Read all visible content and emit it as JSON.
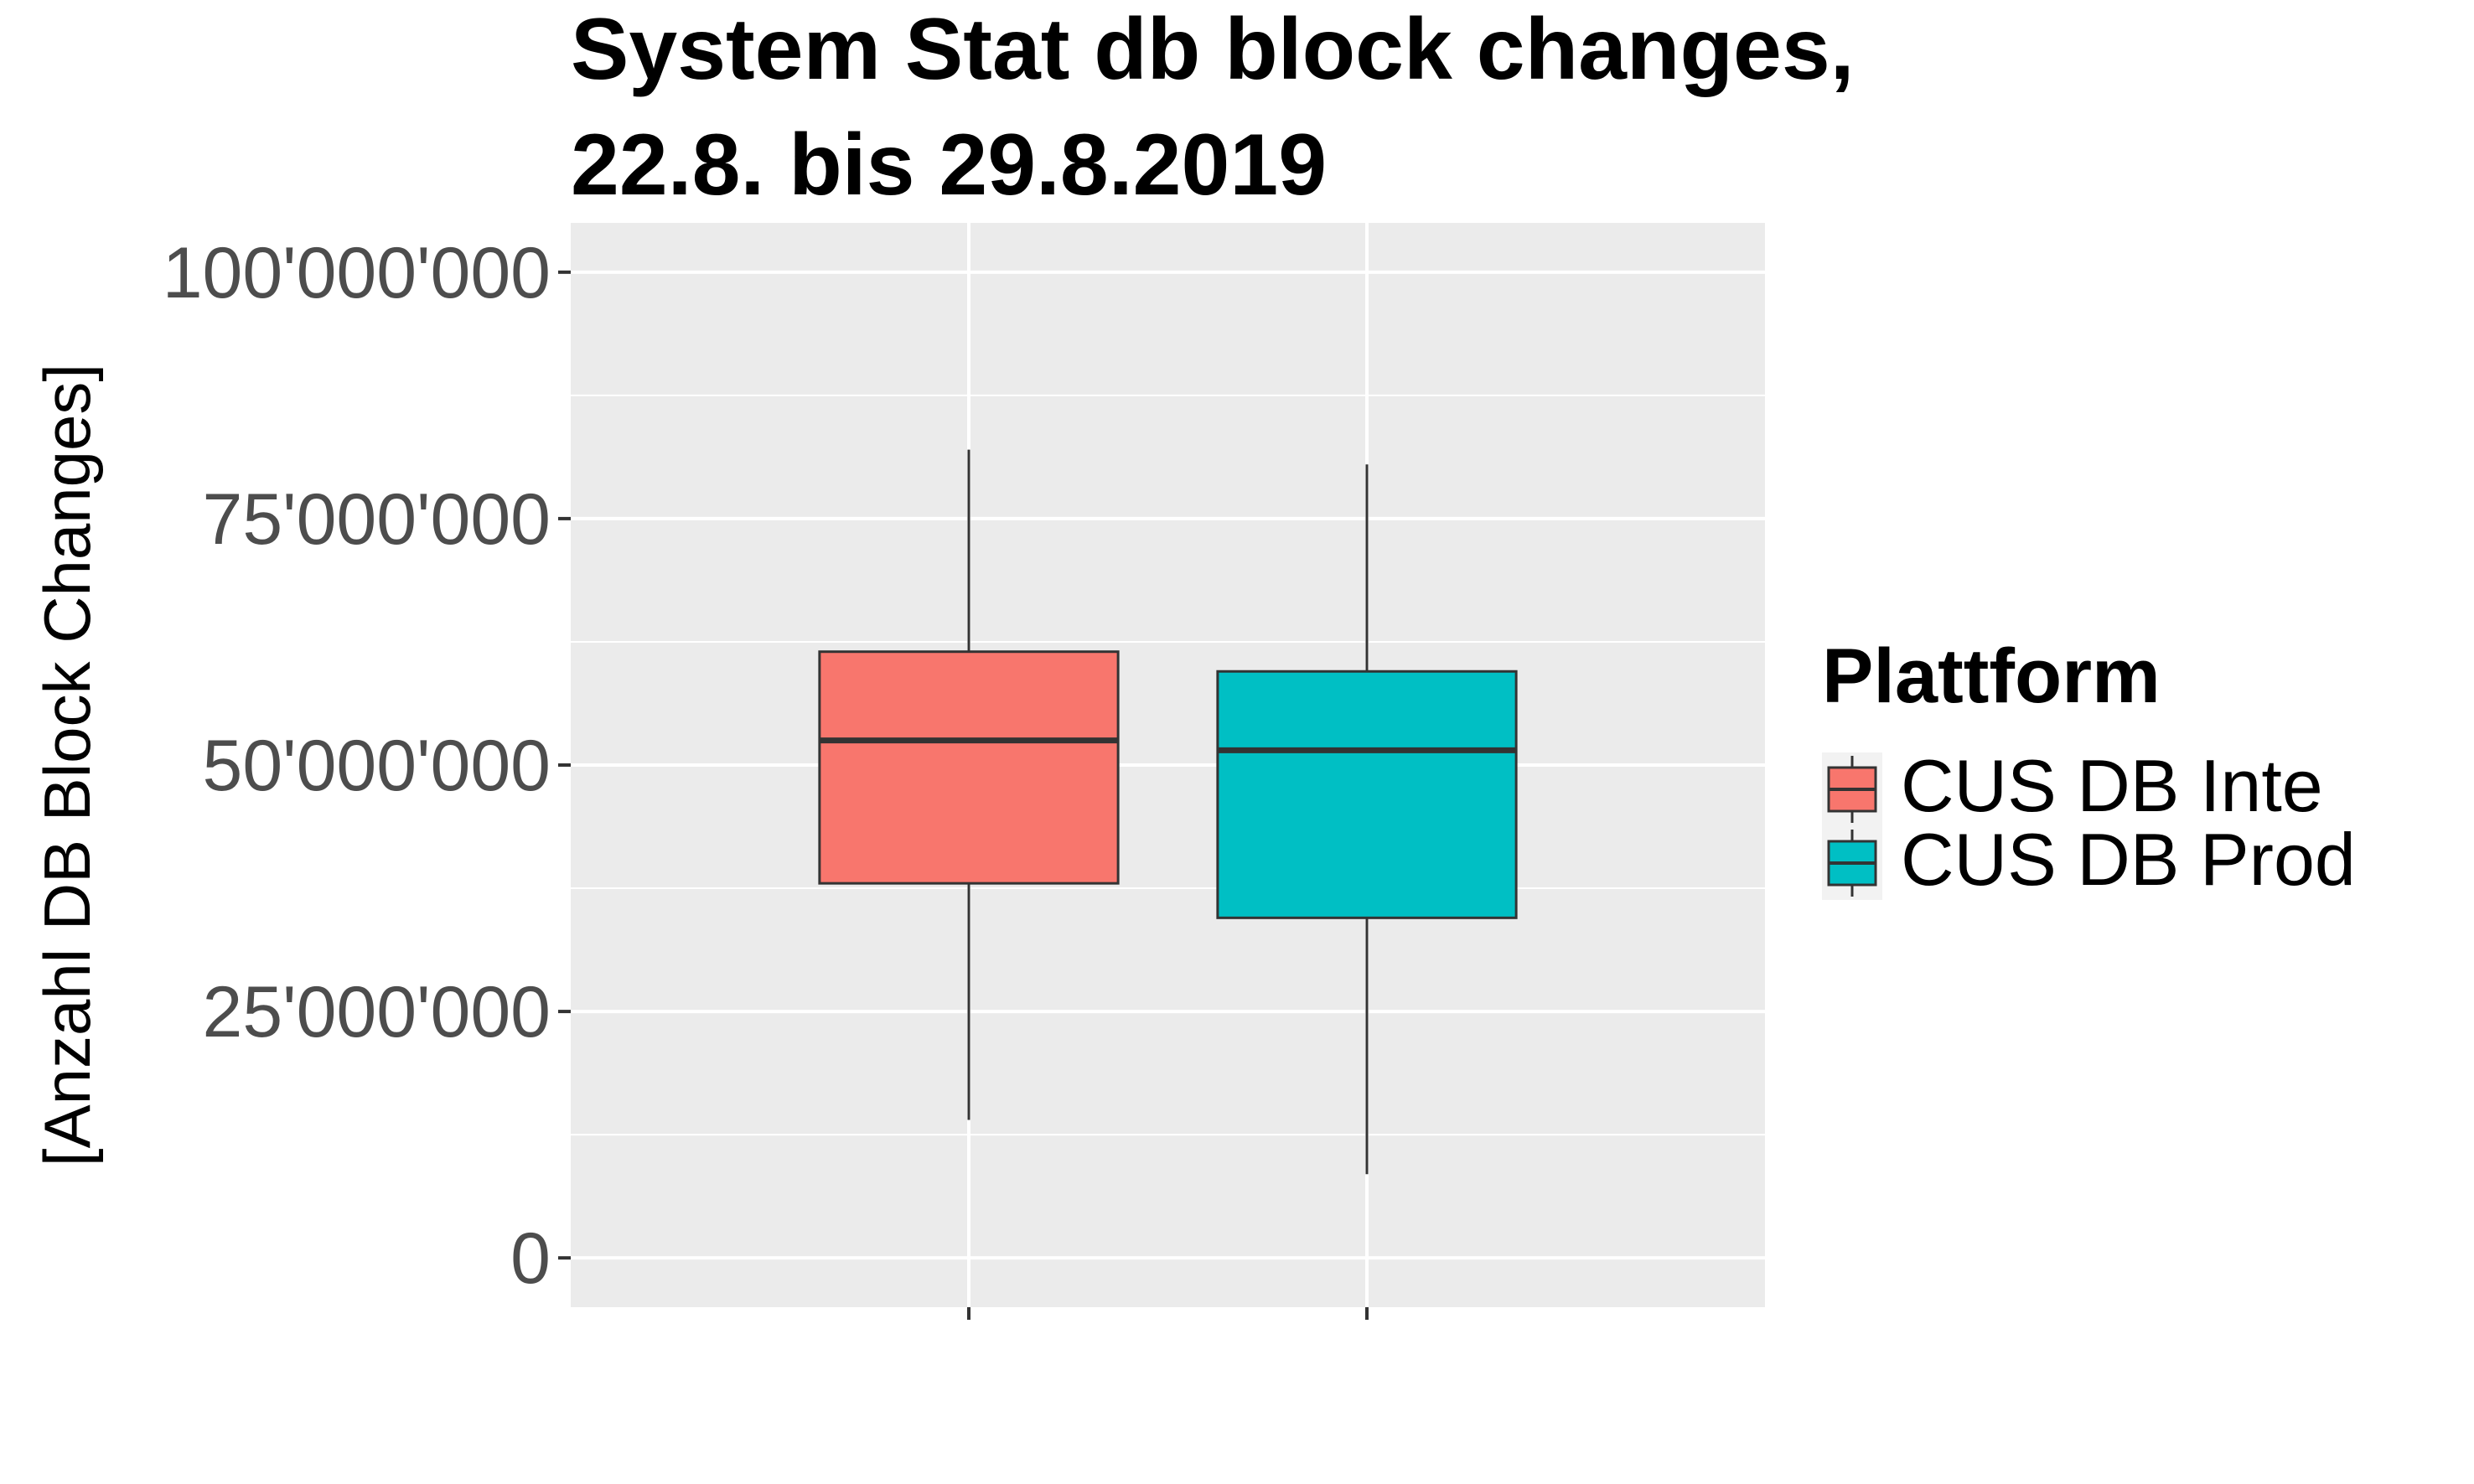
{
  "chart_data": {
    "type": "boxplot",
    "title_lines": [
      "System Stat db block changes,",
      "22.8. bis 29.8.2019"
    ],
    "xlabel": "",
    "ylabel": "[Anzahl DB Block Changes]",
    "ylim": [
      -5000000,
      105000000
    ],
    "yticks": [
      0,
      25000000,
      50000000,
      75000000,
      100000000
    ],
    "ytick_labels": [
      "0",
      "25'000'000",
      "50'000'000",
      "75'000'000",
      "100'000'000"
    ],
    "grid": true,
    "legend": {
      "title": "Plattform",
      "position": "right"
    },
    "series": [
      {
        "name": "CUS DB Inte",
        "color": "#F8766D",
        "whisker_low": 14000000,
        "q1": 38000000,
        "median": 52500000,
        "q3": 61500000,
        "whisker_high": 82000000
      },
      {
        "name": "CUS DB Prod",
        "color": "#00BFC4",
        "whisker_low": 8500000,
        "q1": 34500000,
        "median": 51500000,
        "q3": 59500000,
        "whisker_high": 80500000
      }
    ]
  }
}
